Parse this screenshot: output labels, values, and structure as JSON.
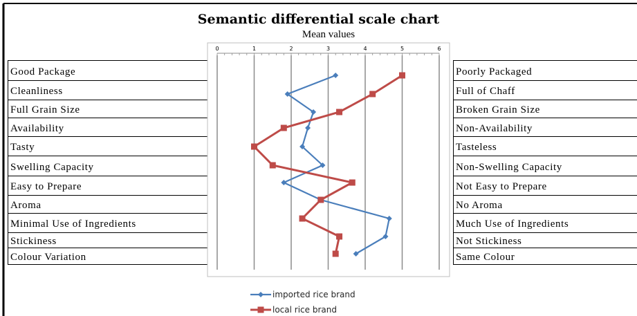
{
  "chart_data": {
    "type": "line",
    "title": "Semantic differential scale chart",
    "subtitle": "Mean values",
    "xlim": [
      0,
      6
    ],
    "x_ticks": [
      "0",
      "1",
      "2",
      "3",
      "4",
      "5",
      "6"
    ],
    "grid": true,
    "legend_position": "bottom",
    "left_labels": [
      "Good Package",
      "Cleanliness",
      "Full Grain Size",
      "Availability",
      "Tasty",
      "Swelling Capacity",
      "Easy to Prepare",
      "Aroma",
      "Minimal Use of Ingredients",
      "Stickiness",
      "Colour Variation"
    ],
    "right_labels": [
      "Poorly Packaged",
      "Full of Chaff",
      "Broken Grain Size",
      "Non-Availability",
      "Tasteless",
      "Non-Swelling Capacity",
      "Not Easy to Prepare",
      "No Aroma",
      "Much Use of Ingredients",
      "Not Stickiness",
      "Same Colour"
    ],
    "series": [
      {
        "name": "imported rice brand",
        "color": "#4a7ebb",
        "marker": "diamond",
        "values": [
          3.2,
          1.9,
          2.6,
          2.45,
          2.3,
          2.85,
          1.8,
          2.8,
          4.65,
          4.55,
          3.75
        ]
      },
      {
        "name": "local rice brand",
        "color": "#be4b48",
        "marker": "square",
        "values": [
          5.0,
          4.2,
          3.3,
          1.8,
          1.0,
          1.5,
          3.65,
          2.8,
          2.3,
          3.3,
          3.2
        ]
      }
    ]
  }
}
